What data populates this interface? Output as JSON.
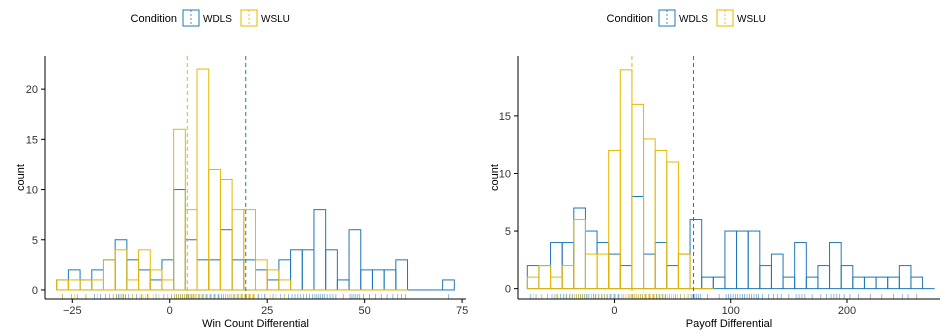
{
  "colors": {
    "WDLS": "#1f77b4",
    "WSLU": "#e6b800",
    "axis": "#000000"
  },
  "chart_data": [
    {
      "type": "bar",
      "subtype": "overlaid-histogram-outline",
      "legend": {
        "title": "Condition",
        "entries": [
          "WDLS",
          "WSLU"
        ],
        "placement": "top"
      },
      "xlabel": "Win Count Differential",
      "ylabel": "count",
      "xlim": [
        -32,
        76
      ],
      "ylim": [
        -0.9,
        23.3
      ],
      "xticks": [
        -25,
        0,
        25,
        50,
        75
      ],
      "xtick_labels": [
        "−25",
        "0",
        "25",
        "50",
        "75"
      ],
      "yticks": [
        0,
        5,
        10,
        15,
        20
      ],
      "ytick_labels": [
        "0",
        "5",
        "10",
        "15",
        "20"
      ],
      "bin_width": 3,
      "series": [
        {
          "name": "WDLS",
          "color": "#1f77b4",
          "mean": 19.5,
          "bins": [
            {
              "x0": -29,
              "count": 1
            },
            {
              "x0": -26,
              "count": 2
            },
            {
              "x0": -23,
              "count": 1
            },
            {
              "x0": -20,
              "count": 2
            },
            {
              "x0": -17,
              "count": 3
            },
            {
              "x0": -14,
              "count": 5
            },
            {
              "x0": -11,
              "count": 3
            },
            {
              "x0": -8,
              "count": 2
            },
            {
              "x0": -5,
              "count": 1
            },
            {
              "x0": -2,
              "count": 3
            },
            {
              "x0": 1,
              "count": 10
            },
            {
              "x0": 4,
              "count": 5
            },
            {
              "x0": 7,
              "count": 3
            },
            {
              "x0": 10,
              "count": 3
            },
            {
              "x0": 13,
              "count": 6
            },
            {
              "x0": 16,
              "count": 3
            },
            {
              "x0": 19,
              "count": 3
            },
            {
              "x0": 22,
              "count": 2
            },
            {
              "x0": 25,
              "count": 1
            },
            {
              "x0": 28,
              "count": 3
            },
            {
              "x0": 31,
              "count": 4
            },
            {
              "x0": 34,
              "count": 4
            },
            {
              "x0": 37,
              "count": 8
            },
            {
              "x0": 40,
              "count": 4
            },
            {
              "x0": 43,
              "count": 1
            },
            {
              "x0": 46,
              "count": 6
            },
            {
              "x0": 49,
              "count": 2
            },
            {
              "x0": 52,
              "count": 2
            },
            {
              "x0": 55,
              "count": 2
            },
            {
              "x0": 58,
              "count": 3
            },
            {
              "x0": 61,
              "count": 0
            },
            {
              "x0": 64,
              "count": 0
            },
            {
              "x0": 67,
              "count": 0
            },
            {
              "x0": 70,
              "count": 1
            }
          ]
        },
        {
          "name": "WSLU",
          "color": "#e6b800",
          "mean": 4.5,
          "bins": [
            {
              "x0": -29,
              "count": 1
            },
            {
              "x0": -26,
              "count": 1
            },
            {
              "x0": -23,
              "count": 1
            },
            {
              "x0": -20,
              "count": 1
            },
            {
              "x0": -17,
              "count": 3
            },
            {
              "x0": -14,
              "count": 4
            },
            {
              "x0": -11,
              "count": 1
            },
            {
              "x0": -8,
              "count": 4
            },
            {
              "x0": -5,
              "count": 2
            },
            {
              "x0": -2,
              "count": 1
            },
            {
              "x0": 1,
              "count": 16
            },
            {
              "x0": 4,
              "count": 8
            },
            {
              "x0": 7,
              "count": 22
            },
            {
              "x0": 10,
              "count": 12
            },
            {
              "x0": 13,
              "count": 11
            },
            {
              "x0": 16,
              "count": 8
            },
            {
              "x0": 19,
              "count": 8
            },
            {
              "x0": 22,
              "count": 3
            },
            {
              "x0": 25,
              "count": 2
            },
            {
              "x0": 28,
              "count": 1
            },
            {
              "x0": 31,
              "count": 0
            },
            {
              "x0": 34,
              "count": 0
            },
            {
              "x0": 37,
              "count": 0
            },
            {
              "x0": 40,
              "count": 0
            },
            {
              "x0": 43,
              "count": 0
            },
            {
              "x0": 46,
              "count": 0
            },
            {
              "x0": 49,
              "count": 0
            },
            {
              "x0": 52,
              "count": 0
            },
            {
              "x0": 55,
              "count": 0
            },
            {
              "x0": 58,
              "count": 0
            }
          ]
        }
      ]
    },
    {
      "type": "bar",
      "subtype": "overlaid-histogram-outline",
      "legend": {
        "title": "Condition",
        "entries": [
          "WDLS",
          "WSLU"
        ],
        "placement": "top"
      },
      "xlabel": "Payoff Differential",
      "ylabel": "count",
      "xlim": [
        -83,
        280
      ],
      "ylim": [
        -0.9,
        20.2
      ],
      "xticks": [
        0,
        100,
        200
      ],
      "xtick_labels": [
        "0",
        "100",
        "200"
      ],
      "yticks": [
        0,
        5,
        10,
        15
      ],
      "ytick_labels": [
        "0",
        "5",
        "10",
        "15"
      ],
      "bin_width": 10,
      "series": [
        {
          "name": "WDLS",
          "color": "#1f77b4",
          "mean": 68,
          "bins": [
            {
              "x0": -75,
              "count": 2
            },
            {
              "x0": -65,
              "count": 2
            },
            {
              "x0": -55,
              "count": 4
            },
            {
              "x0": -45,
              "count": 4
            },
            {
              "x0": -35,
              "count": 7
            },
            {
              "x0": -25,
              "count": 5
            },
            {
              "x0": -15,
              "count": 4
            },
            {
              "x0": -5,
              "count": 3
            },
            {
              "x0": 5,
              "count": 2
            },
            {
              "x0": 15,
              "count": 8
            },
            {
              "x0": 25,
              "count": 3
            },
            {
              "x0": 35,
              "count": 4
            },
            {
              "x0": 45,
              "count": 2
            },
            {
              "x0": 55,
              "count": 3
            },
            {
              "x0": 65,
              "count": 6
            },
            {
              "x0": 75,
              "count": 1
            },
            {
              "x0": 85,
              "count": 1
            },
            {
              "x0": 95,
              "count": 5
            },
            {
              "x0": 105,
              "count": 5
            },
            {
              "x0": 115,
              "count": 5
            },
            {
              "x0": 125,
              "count": 2
            },
            {
              "x0": 135,
              "count": 3
            },
            {
              "x0": 145,
              "count": 1
            },
            {
              "x0": 155,
              "count": 4
            },
            {
              "x0": 165,
              "count": 1
            },
            {
              "x0": 175,
              "count": 2
            },
            {
              "x0": 185,
              "count": 4
            },
            {
              "x0": 195,
              "count": 2
            },
            {
              "x0": 205,
              "count": 1
            },
            {
              "x0": 215,
              "count": 1
            },
            {
              "x0": 225,
              "count": 1
            },
            {
              "x0": 235,
              "count": 1
            },
            {
              "x0": 245,
              "count": 2
            },
            {
              "x0": 255,
              "count": 1
            },
            {
              "x0": 265,
              "count": 0
            }
          ]
        },
        {
          "name": "WSLU",
          "color": "#e6b800",
          "mean": 15,
          "bins": [
            {
              "x0": -75,
              "count": 1
            },
            {
              "x0": -65,
              "count": 2
            },
            {
              "x0": -55,
              "count": 1
            },
            {
              "x0": -45,
              "count": 2
            },
            {
              "x0": -35,
              "count": 6
            },
            {
              "x0": -25,
              "count": 3
            },
            {
              "x0": -15,
              "count": 3
            },
            {
              "x0": -5,
              "count": 12
            },
            {
              "x0": 5,
              "count": 19
            },
            {
              "x0": 15,
              "count": 16
            },
            {
              "x0": 25,
              "count": 13
            },
            {
              "x0": 35,
              "count": 12
            },
            {
              "x0": 45,
              "count": 11
            },
            {
              "x0": 55,
              "count": 3
            },
            {
              "x0": 65,
              "count": 0
            },
            {
              "x0": 75,
              "count": 0
            }
          ]
        }
      ]
    }
  ]
}
